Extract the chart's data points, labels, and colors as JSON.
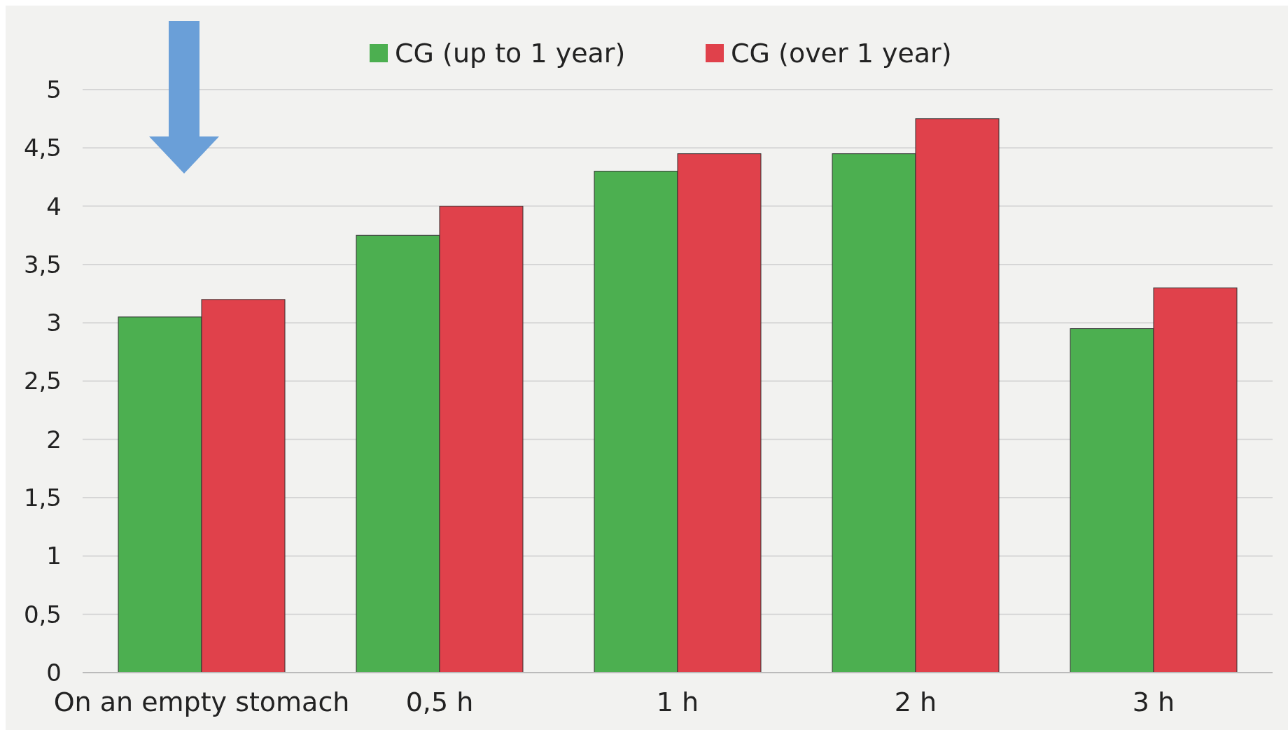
{
  "chart_data": {
    "type": "bar",
    "categories": [
      "On an empty stomach",
      "0,5 h",
      "1 h",
      "2 h",
      "3 h"
    ],
    "series": [
      {
        "name": "CG (up to 1 year)",
        "color": "#4caf50",
        "values": [
          3.05,
          3.75,
          4.3,
          4.45,
          2.95
        ]
      },
      {
        "name": "CG (over 1 year)",
        "color": "#e0414b",
        "values": [
          3.2,
          4.0,
          4.45,
          4.75,
          3.3
        ]
      }
    ],
    "ylim": [
      0,
      5
    ],
    "yticks": [
      0,
      {
        "value": 0.5,
        "label": "0,5"
      },
      1,
      {
        "value": 1.5,
        "label": "1,5"
      },
      2,
      {
        "value": 2.5,
        "label": "2,5"
      },
      3,
      {
        "value": 3.5,
        "label": "3,5"
      },
      4,
      {
        "value": 4.5,
        "label": "4,5"
      },
      5
    ],
    "grid": "y",
    "legend": "top"
  }
}
